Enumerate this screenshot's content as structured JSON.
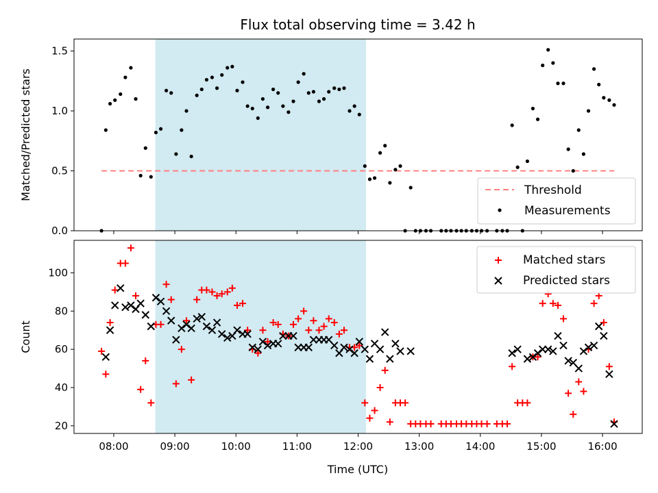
{
  "chart_data": {
    "type": "scatter",
    "title": "Flux total observing time = 3.42 h",
    "xlabel": "Time (UTC)",
    "x_tick_labels": [
      "08:00",
      "09:00",
      "10:00",
      "11:00",
      "12:00",
      "13:00",
      "14:00",
      "15:00",
      "16:00"
    ],
    "x_ticks_hours": [
      8,
      9,
      10,
      11,
      12,
      13,
      14,
      15,
      16
    ],
    "xlim_hours": [
      7.35,
      16.65
    ],
    "highlight_span_hours": [
      8.68,
      12.13
    ],
    "highlight_color": "#add8e6",
    "top_panel": {
      "ylabel": "Matched/Predicted stars",
      "ylim": [
        0,
        1.6
      ],
      "y_ticks": [
        0.0,
        0.5,
        1.0,
        1.5
      ],
      "y_tick_labels": [
        "0.0",
        "0.5",
        "1.0",
        "1.5"
      ],
      "threshold": 0.5,
      "threshold_color": "#ff7f7f",
      "legend": [
        "Threshold",
        "Measurements"
      ],
      "legend_position": "lower-right",
      "measurements": [
        [
          7.8,
          0.0
        ],
        [
          7.87,
          0.84
        ],
        [
          7.94,
          1.06
        ],
        [
          8.02,
          1.09
        ],
        [
          8.11,
          1.14
        ],
        [
          8.19,
          1.28
        ],
        [
          8.28,
          1.36
        ],
        [
          8.36,
          1.1
        ],
        [
          8.44,
          0.46
        ],
        [
          8.52,
          0.69
        ],
        [
          8.61,
          0.45
        ],
        [
          8.69,
          0.82
        ],
        [
          8.77,
          0.85
        ],
        [
          8.86,
          1.17
        ],
        [
          8.94,
          1.15
        ],
        [
          9.02,
          0.64
        ],
        [
          9.11,
          0.84
        ],
        [
          9.19,
          1.0
        ],
        [
          9.27,
          0.62
        ],
        [
          9.36,
          1.13
        ],
        [
          9.44,
          1.18
        ],
        [
          9.52,
          1.26
        ],
        [
          9.61,
          1.28
        ],
        [
          9.69,
          1.19
        ],
        [
          9.77,
          1.3
        ],
        [
          9.86,
          1.36
        ],
        [
          9.94,
          1.37
        ],
        [
          10.02,
          1.17
        ],
        [
          10.11,
          1.24
        ],
        [
          10.19,
          1.04
        ],
        [
          10.27,
          1.02
        ],
        [
          10.36,
          0.94
        ],
        [
          10.44,
          1.1
        ],
        [
          10.52,
          1.03
        ],
        [
          10.61,
          1.18
        ],
        [
          10.69,
          1.15
        ],
        [
          10.77,
          1.04
        ],
        [
          10.86,
          0.99
        ],
        [
          10.94,
          1.08
        ],
        [
          11.02,
          1.24
        ],
        [
          11.11,
          1.31
        ],
        [
          11.19,
          1.15
        ],
        [
          11.27,
          1.16
        ],
        [
          11.36,
          1.08
        ],
        [
          11.44,
          1.1
        ],
        [
          11.52,
          1.16
        ],
        [
          11.61,
          1.19
        ],
        [
          11.69,
          1.18
        ],
        [
          11.77,
          1.19
        ],
        [
          11.86,
          1.0
        ],
        [
          11.94,
          1.04
        ],
        [
          12.02,
          0.97
        ],
        [
          12.11,
          0.54
        ],
        [
          12.19,
          0.43
        ],
        [
          12.27,
          0.44
        ],
        [
          12.36,
          0.65
        ],
        [
          12.44,
          0.71
        ],
        [
          12.52,
          0.4
        ],
        [
          12.61,
          0.51
        ],
        [
          12.69,
          0.54
        ],
        [
          12.77,
          0.0
        ],
        [
          12.86,
          0.36
        ],
        [
          12.94,
          0.0
        ],
        [
          13.02,
          0.0
        ],
        [
          13.11,
          0.0
        ],
        [
          13.19,
          0.0
        ],
        [
          13.36,
          0.0
        ],
        [
          13.44,
          0.0
        ],
        [
          13.52,
          0.0
        ],
        [
          13.61,
          0.0
        ],
        [
          13.69,
          0.0
        ],
        [
          13.77,
          0.0
        ],
        [
          13.86,
          0.0
        ],
        [
          13.94,
          0.0
        ],
        [
          14.02,
          0.0
        ],
        [
          14.11,
          0.0
        ],
        [
          14.27,
          0.0
        ],
        [
          14.36,
          0.0
        ],
        [
          14.44,
          0.0
        ],
        [
          14.52,
          0.88
        ],
        [
          14.61,
          0.53
        ],
        [
          14.69,
          0.0
        ],
        [
          14.77,
          0.58
        ],
        [
          14.86,
          1.02
        ],
        [
          14.94,
          0.93
        ],
        [
          15.02,
          1.38
        ],
        [
          15.11,
          1.51
        ],
        [
          15.19,
          1.4
        ],
        [
          15.27,
          1.23
        ],
        [
          15.36,
          1.23
        ],
        [
          15.44,
          0.68
        ],
        [
          15.52,
          0.5
        ],
        [
          15.61,
          0.84
        ],
        [
          15.69,
          0.64
        ],
        [
          15.77,
          1.0
        ],
        [
          15.86,
          1.35
        ],
        [
          15.94,
          1.22
        ],
        [
          16.02,
          1.11
        ],
        [
          16.11,
          1.09
        ],
        [
          16.19,
          1.05
        ]
      ]
    },
    "bottom_panel": {
      "ylabel": "Count",
      "ylim": [
        16,
        117
      ],
      "y_ticks": [
        20,
        40,
        60,
        80,
        100
      ],
      "y_tick_labels": [
        "20",
        "40",
        "60",
        "80",
        "100"
      ],
      "legend": [
        "Matched stars",
        "Predicted stars"
      ],
      "legend_position": "upper-right",
      "series": [
        {
          "name": "Matched stars",
          "marker": "+",
          "color": "#ff0000",
          "points": [
            [
              7.8,
              59
            ],
            [
              7.87,
              47
            ],
            [
              7.94,
              74
            ],
            [
              8.02,
              91
            ],
            [
              8.11,
              105
            ],
            [
              8.19,
              105
            ],
            [
              8.28,
              113
            ],
            [
              8.36,
              88
            ],
            [
              8.44,
              39
            ],
            [
              8.52,
              54
            ],
            [
              8.61,
              32
            ],
            [
              8.69,
              73
            ],
            [
              8.77,
              73
            ],
            [
              8.86,
              94
            ],
            [
              8.94,
              86
            ],
            [
              9.02,
              42
            ],
            [
              9.11,
              60
            ],
            [
              9.19,
              75
            ],
            [
              9.27,
              44
            ],
            [
              9.36,
              86
            ],
            [
              9.44,
              91
            ],
            [
              9.52,
              91
            ],
            [
              9.61,
              90
            ],
            [
              9.69,
              88
            ],
            [
              9.77,
              89
            ],
            [
              9.86,
              90
            ],
            [
              9.94,
              92
            ],
            [
              10.02,
              83
            ],
            [
              10.11,
              84
            ],
            [
              10.19,
              70
            ],
            [
              10.27,
              60
            ],
            [
              10.36,
              58
            ],
            [
              10.44,
              70
            ],
            [
              10.52,
              64
            ],
            [
              10.61,
              74
            ],
            [
              10.69,
              73
            ],
            [
              10.77,
              68
            ],
            [
              10.86,
              67
            ],
            [
              10.94,
              73
            ],
            [
              11.02,
              76
            ],
            [
              11.11,
              80
            ],
            [
              11.19,
              70
            ],
            [
              11.27,
              75
            ],
            [
              11.36,
              70
            ],
            [
              11.44,
              72
            ],
            [
              11.52,
              76
            ],
            [
              11.61,
              74
            ],
            [
              11.69,
              68
            ],
            [
              11.77,
              70
            ],
            [
              11.86,
              61
            ],
            [
              11.94,
              61
            ],
            [
              12.02,
              62
            ],
            [
              12.11,
              32
            ],
            [
              12.19,
              24
            ],
            [
              12.27,
              28
            ],
            [
              12.36,
              40
            ],
            [
              12.44,
              49
            ],
            [
              12.52,
              22
            ],
            [
              12.61,
              32
            ],
            [
              12.69,
              32
            ],
            [
              12.77,
              32
            ],
            [
              12.86,
              21
            ],
            [
              12.94,
              21
            ],
            [
              13.02,
              21
            ],
            [
              13.11,
              21
            ],
            [
              13.19,
              21
            ],
            [
              13.36,
              21
            ],
            [
              13.44,
              21
            ],
            [
              13.52,
              21
            ],
            [
              13.61,
              21
            ],
            [
              13.69,
              21
            ],
            [
              13.77,
              21
            ],
            [
              13.86,
              21
            ],
            [
              13.94,
              21
            ],
            [
              14.02,
              21
            ],
            [
              14.11,
              21
            ],
            [
              14.27,
              21
            ],
            [
              14.36,
              21
            ],
            [
              14.44,
              21
            ],
            [
              14.52,
              51
            ],
            [
              14.61,
              32
            ],
            [
              14.69,
              32
            ],
            [
              14.77,
              32
            ],
            [
              14.86,
              56
            ],
            [
              14.94,
              56
            ],
            [
              15.02,
              84
            ],
            [
              15.11,
              89
            ],
            [
              15.19,
              84
            ],
            [
              15.27,
              83
            ],
            [
              15.36,
              76
            ],
            [
              15.44,
              37
            ],
            [
              15.52,
              26
            ],
            [
              15.61,
              43
            ],
            [
              15.69,
              38
            ],
            [
              15.77,
              60
            ],
            [
              15.86,
              84
            ],
            [
              15.94,
              88
            ],
            [
              16.02,
              74
            ],
            [
              16.11,
              51
            ],
            [
              16.19,
              22
            ]
          ]
        },
        {
          "name": "Predicted stars",
          "marker": "x",
          "color": "#000000",
          "points": [
            [
              7.87,
              56
            ],
            [
              7.94,
              70
            ],
            [
              8.02,
              83
            ],
            [
              8.11,
              92
            ],
            [
              8.19,
              82
            ],
            [
              8.28,
              83
            ],
            [
              8.36,
              81
            ],
            [
              8.44,
              84
            ],
            [
              8.52,
              78
            ],
            [
              8.61,
              72
            ],
            [
              8.69,
              87
            ],
            [
              8.77,
              85
            ],
            [
              8.86,
              80
            ],
            [
              8.94,
              75
            ],
            [
              9.02,
              65
            ],
            [
              9.11,
              71
            ],
            [
              9.19,
              73
            ],
            [
              9.27,
              71
            ],
            [
              9.36,
              76
            ],
            [
              9.44,
              77
            ],
            [
              9.52,
              72
            ],
            [
              9.61,
              70
            ],
            [
              9.69,
              74
            ],
            [
              9.77,
              68
            ],
            [
              9.86,
              66
            ],
            [
              9.94,
              67
            ],
            [
              10.02,
              70
            ],
            [
              10.11,
              68
            ],
            [
              10.19,
              68
            ],
            [
              10.27,
              61
            ],
            [
              10.36,
              60
            ],
            [
              10.44,
              64
            ],
            [
              10.52,
              62
            ],
            [
              10.61,
              63
            ],
            [
              10.69,
              63
            ],
            [
              10.77,
              67
            ],
            [
              10.86,
              67
            ],
            [
              10.94,
              67
            ],
            [
              11.02,
              61
            ],
            [
              11.11,
              61
            ],
            [
              11.19,
              61
            ],
            [
              11.27,
              65
            ],
            [
              11.36,
              65
            ],
            [
              11.44,
              65
            ],
            [
              11.52,
              65
            ],
            [
              11.61,
              62
            ],
            [
              11.69,
              58
            ],
            [
              11.77,
              61
            ],
            [
              11.86,
              60
            ],
            [
              11.94,
              58
            ],
            [
              12.02,
              64
            ],
            [
              12.11,
              60
            ],
            [
              12.19,
              55
            ],
            [
              12.27,
              63
            ],
            [
              12.36,
              60
            ],
            [
              12.44,
              69
            ],
            [
              12.52,
              55
            ],
            [
              12.61,
              63
            ],
            [
              12.69,
              59
            ],
            [
              12.86,
              59
            ],
            [
              14.52,
              58
            ],
            [
              14.61,
              60
            ],
            [
              14.77,
              55
            ],
            [
              14.86,
              56
            ],
            [
              14.94,
              58
            ],
            [
              15.02,
              60
            ],
            [
              15.11,
              60
            ],
            [
              15.19,
              59
            ],
            [
              15.27,
              67
            ],
            [
              15.36,
              62
            ],
            [
              15.44,
              54
            ],
            [
              15.52,
              53
            ],
            [
              15.61,
              50
            ],
            [
              15.69,
              59
            ],
            [
              15.77,
              61
            ],
            [
              15.86,
              62
            ],
            [
              15.94,
              72
            ],
            [
              16.02,
              67
            ],
            [
              16.11,
              47
            ],
            [
              16.19,
              21
            ]
          ]
        }
      ]
    }
  }
}
